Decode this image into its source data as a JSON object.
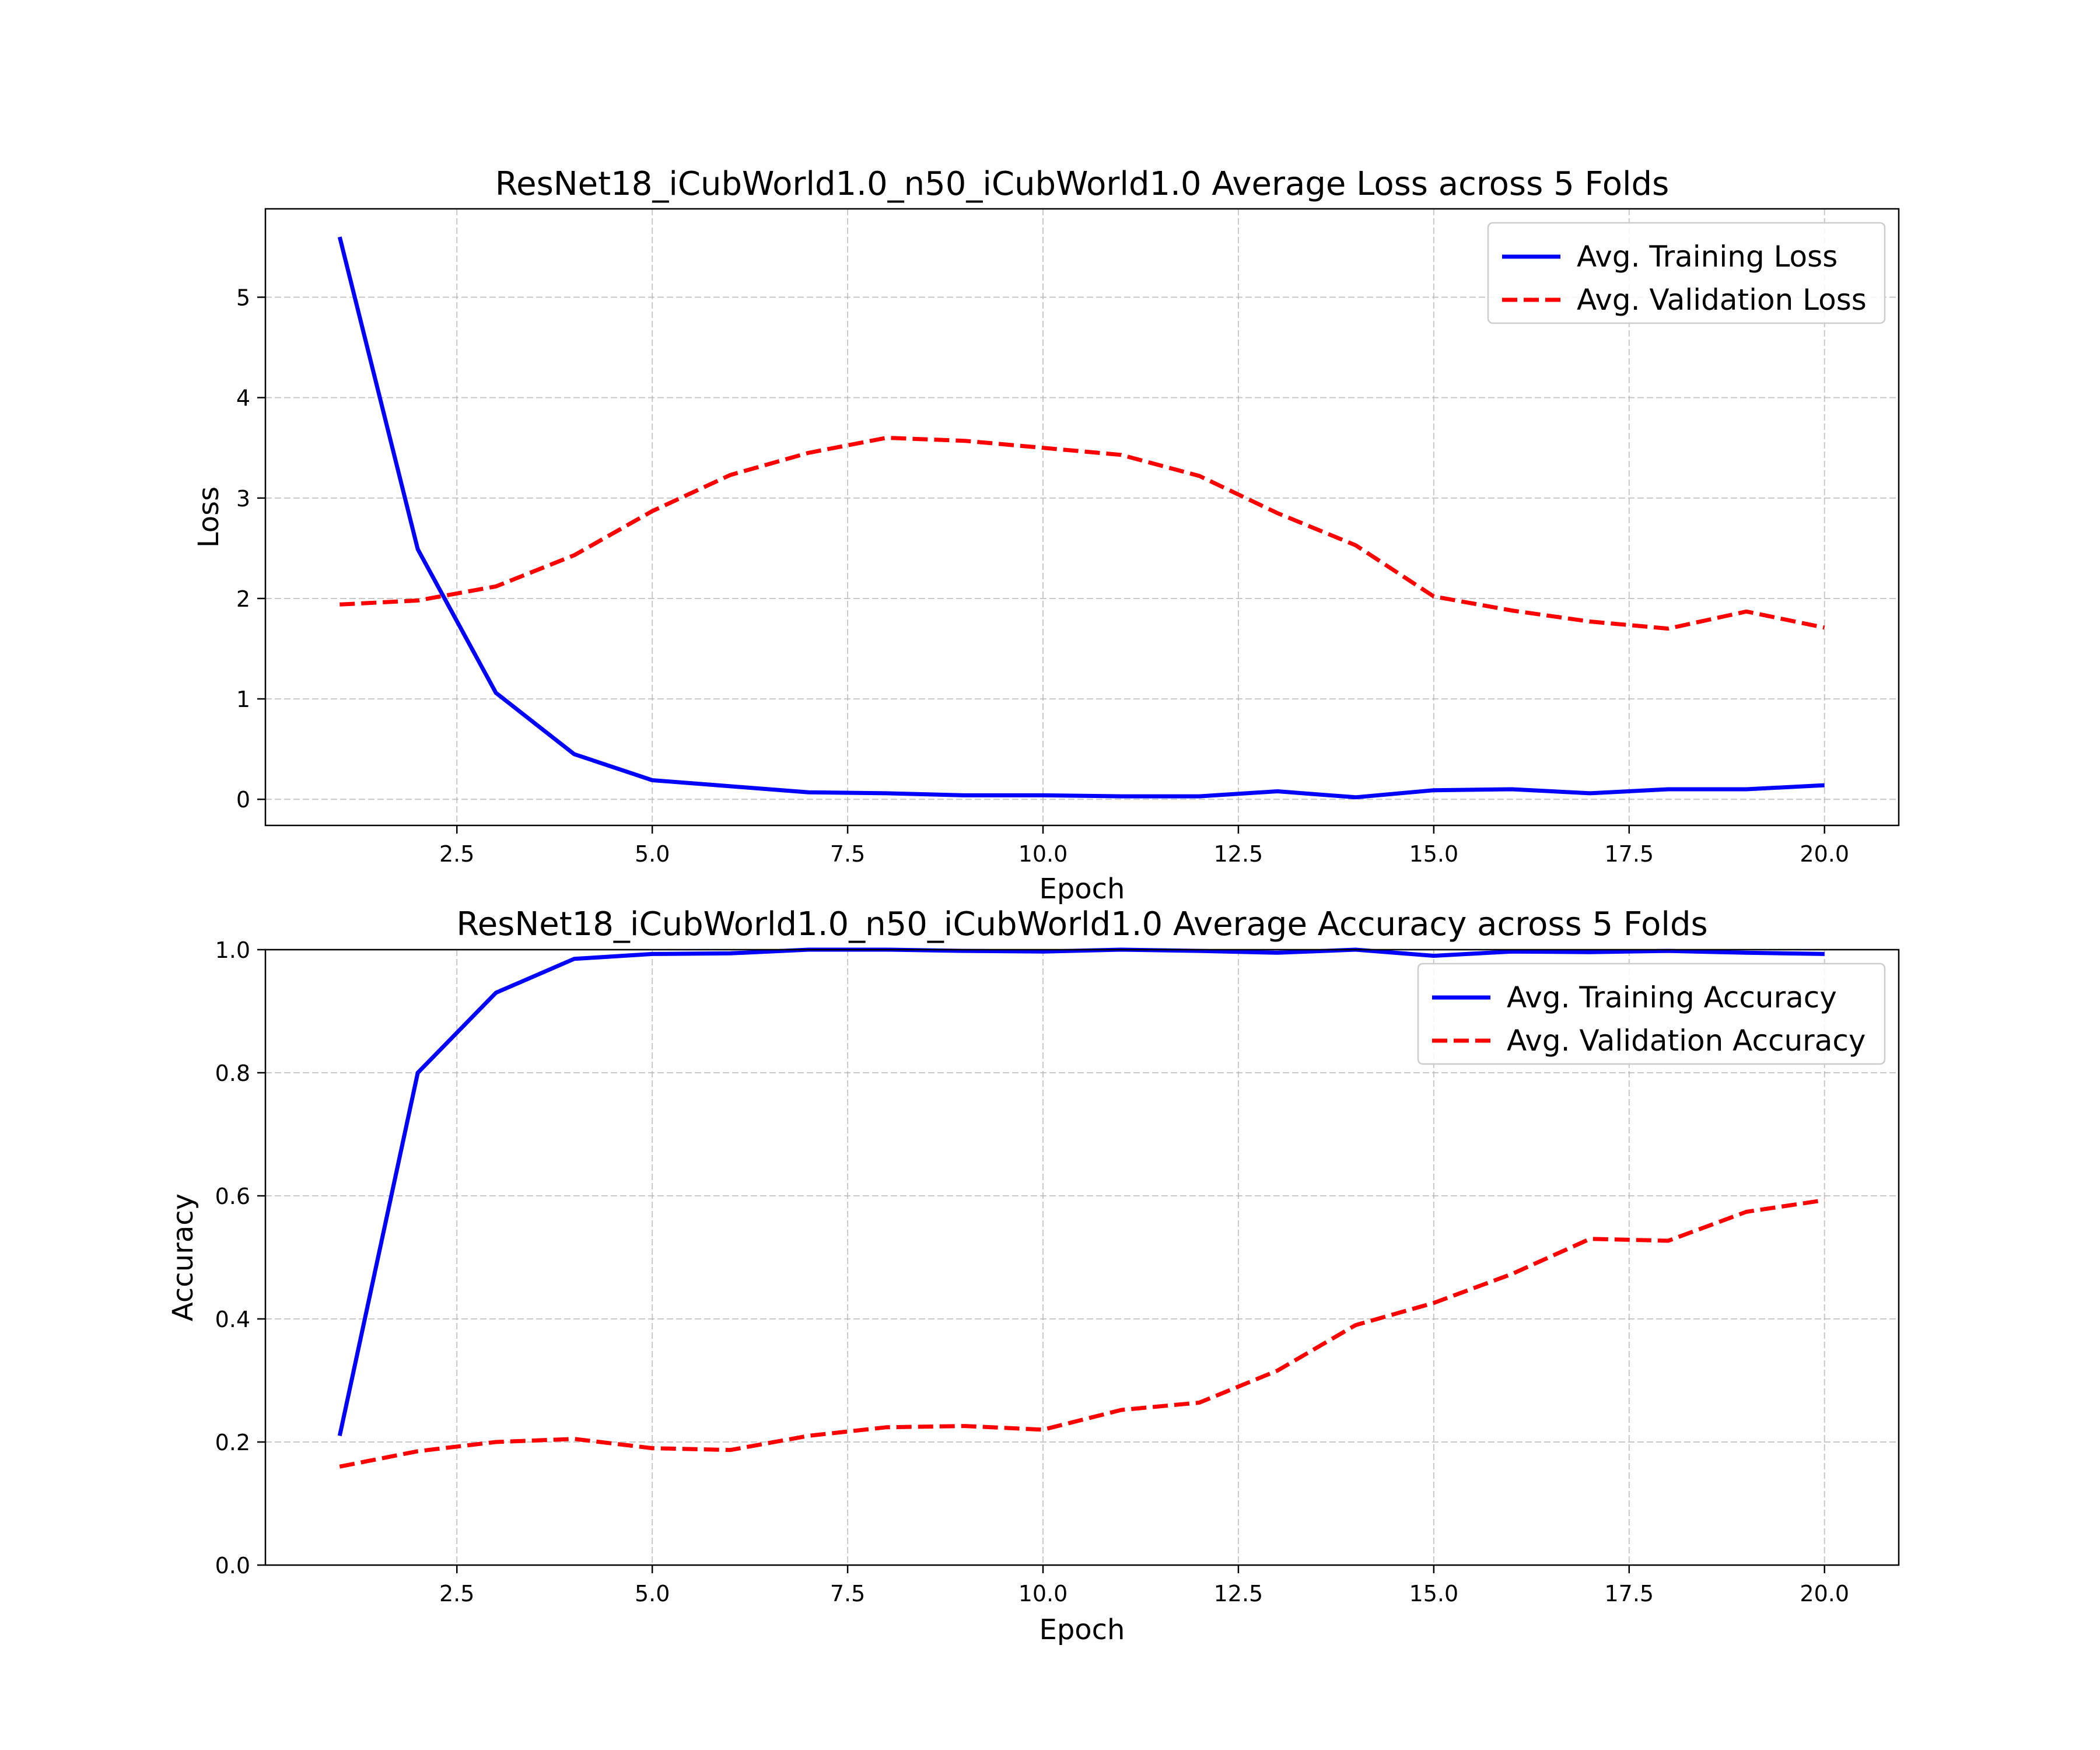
{
  "chart_data": [
    {
      "type": "line",
      "title": "ResNet18_iCubWorld1.0_n50_iCubWorld1.0 Average Loss across 5 Folds",
      "xlabel": "Epoch",
      "ylabel": "Loss",
      "xlim": [
        0.05,
        20.95
      ],
      "ylim": [
        -0.26,
        5.88
      ],
      "xticks": [
        2.5,
        5.0,
        7.5,
        10.0,
        12.5,
        15.0,
        17.5,
        20.0
      ],
      "xtick_labels": [
        "2.5",
        "5.0",
        "7.5",
        "10.0",
        "12.5",
        "15.0",
        "17.5",
        "20.0"
      ],
      "yticks": [
        0,
        1,
        2,
        3,
        4,
        5
      ],
      "ytick_labels": [
        "0",
        "1",
        "2",
        "3",
        "4",
        "5"
      ],
      "grid": true,
      "legend_position": "top-right",
      "x": [
        1,
        2,
        3,
        4,
        5,
        6,
        7,
        8,
        9,
        10,
        11,
        12,
        13,
        14,
        15,
        16,
        17,
        18,
        19,
        20
      ],
      "series": [
        {
          "name": "Avg. Training Loss",
          "color": "#0000ff",
          "style": "solid",
          "values": [
            5.6,
            2.49,
            1.06,
            0.45,
            0.19,
            0.13,
            0.07,
            0.06,
            0.04,
            0.04,
            0.03,
            0.03,
            0.08,
            0.02,
            0.09,
            0.1,
            0.06,
            0.1,
            0.1,
            0.14
          ]
        },
        {
          "name": "Avg. Validation Loss",
          "color": "#ff0000",
          "style": "dashed",
          "values": [
            1.94,
            1.98,
            2.12,
            2.43,
            2.87,
            3.23,
            3.45,
            3.6,
            3.57,
            3.5,
            3.43,
            3.22,
            2.85,
            2.53,
            2.02,
            1.88,
            1.77,
            1.7,
            1.87,
            1.71
          ]
        }
      ]
    },
    {
      "type": "line",
      "title": "ResNet18_iCubWorld1.0_n50_iCubWorld1.0 Average Accuracy across 5 Folds",
      "xlabel": "Epoch",
      "ylabel": "Accuracy",
      "xlim": [
        0.05,
        20.95
      ],
      "ylim": [
        0.0,
        1.0
      ],
      "xticks": [
        2.5,
        5.0,
        7.5,
        10.0,
        12.5,
        15.0,
        17.5,
        20.0
      ],
      "xtick_labels": [
        "2.5",
        "5.0",
        "7.5",
        "10.0",
        "12.5",
        "15.0",
        "17.5",
        "20.0"
      ],
      "yticks": [
        0.0,
        0.2,
        0.4,
        0.6,
        0.8,
        1.0
      ],
      "ytick_labels": [
        "0.0",
        "0.2",
        "0.4",
        "0.6",
        "0.8",
        "1.0"
      ],
      "grid": true,
      "legend_position": "top-right",
      "x": [
        1,
        2,
        3,
        4,
        5,
        6,
        7,
        8,
        9,
        10,
        11,
        12,
        13,
        14,
        15,
        16,
        17,
        18,
        19,
        20
      ],
      "series": [
        {
          "name": "Avg. Training Accuracy",
          "color": "#0000ff",
          "style": "solid",
          "values": [
            0.21,
            0.8,
            0.93,
            0.985,
            0.993,
            0.994,
            1.0,
            1.0,
            0.998,
            0.997,
            1.0,
            0.998,
            0.995,
            1.0,
            0.99,
            0.997,
            0.996,
            0.998,
            0.995,
            0.993
          ]
        },
        {
          "name": "Avg. Validation Accuracy",
          "color": "#ff0000",
          "style": "dashed",
          "values": [
            0.16,
            0.185,
            0.2,
            0.205,
            0.19,
            0.187,
            0.21,
            0.224,
            0.226,
            0.22,
            0.252,
            0.264,
            0.316,
            0.39,
            0.426,
            0.473,
            0.53,
            0.527,
            0.574,
            0.593
          ]
        }
      ]
    }
  ]
}
